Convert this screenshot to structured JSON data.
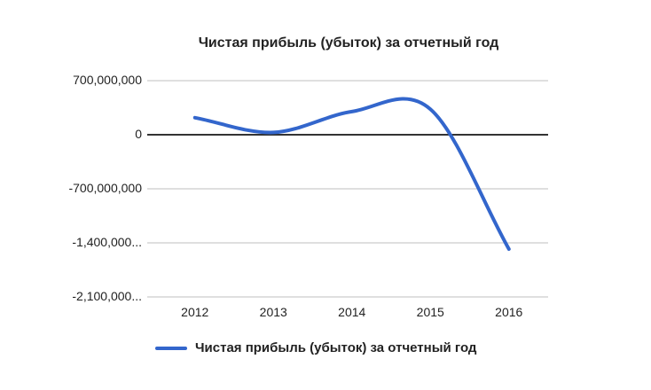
{
  "chart": {
    "title": "Чистая прибыль (убыток) за отчетный год",
    "legend_label": "Чистая прибыль (убыток) за отчетный год"
  },
  "chart_data": {
    "type": "line",
    "title": "Чистая прибыль (убыток) за отчетный год",
    "categories": [
      "2012",
      "2013",
      "2014",
      "2015",
      "2016"
    ],
    "series": [
      {
        "name": "Чистая прибыль (убыток) за отчетный год",
        "values": [
          220000000,
          30000000,
          300000000,
          330000000,
          -1480000000
        ]
      }
    ],
    "xlabel": "",
    "ylabel": "",
    "ylim": [
      -2100000000,
      700000000
    ],
    "yticks": [
      {
        "value": 700000000,
        "label": "700,000,000"
      },
      {
        "value": 0,
        "label": "0"
      },
      {
        "value": -700000000,
        "label": "-700,000,000"
      },
      {
        "value": -1400000000,
        "label": "-1,400,000..."
      },
      {
        "value": -2100000000,
        "label": "-2,100,000..."
      }
    ],
    "grid": true,
    "curve": "smooth",
    "legend_position": "bottom",
    "colors": {
      "line": "#3366cc",
      "grid": "#cccccc",
      "zero_line": "#333333",
      "text": "#222222"
    }
  }
}
